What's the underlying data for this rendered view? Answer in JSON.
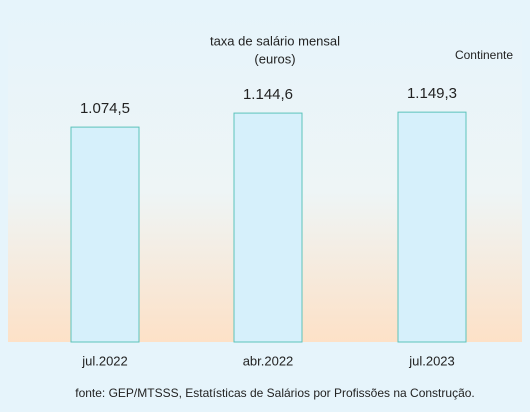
{
  "chart_data": {
    "type": "bar",
    "title": "taxa de salário mensal",
    "subtitle": "(euros)",
    "annotation": "Continente",
    "source": "fonte: GEP/MTSSS, Estatísticas de Salários por Profissões na Construção.",
    "categories": [
      "jul.2022",
      "abr.2022",
      "jul.2023"
    ],
    "values": [
      1074.5,
      1144.6,
      1149.3
    ],
    "value_labels": [
      "1.074,5",
      "1.144,6",
      "1.149,3"
    ],
    "color": "#d6f0fb",
    "edge_color": "#5cc3bb"
  }
}
